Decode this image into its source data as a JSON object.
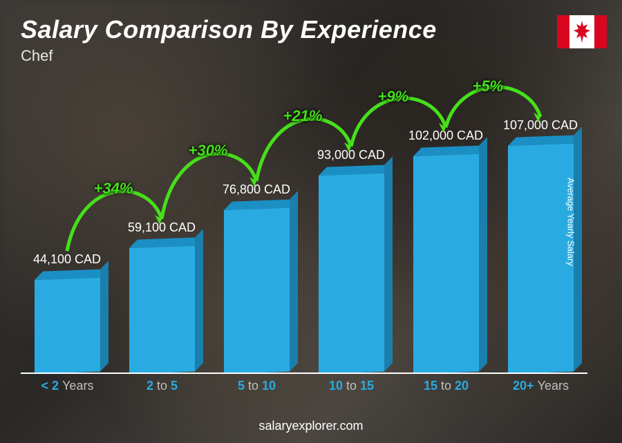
{
  "title": "Salary Comparison By Experience",
  "subtitle": "Chef",
  "y_axis_label": "Average Yearly Salary",
  "footer": "salaryexplorer.com",
  "flag": {
    "country": "Canada",
    "band_color": "#d80621",
    "center_color": "#ffffff"
  },
  "chart": {
    "type": "bar",
    "currency": "CAD",
    "bar_fill": "#29abe2",
    "bar_top": "#1b8fc4",
    "bar_side": "#1b7fae",
    "baseline_color": "#ffffff",
    "value_color": "#ffffff",
    "pct_color": "#46e01a",
    "arrow_stroke": "#46e01a",
    "label_accent": "#29abe2",
    "label_muted": "#c0c0c0",
    "max_value": 107000,
    "max_bar_height": 330,
    "bars": [
      {
        "label_pre": "< 2",
        "label_post": "Years",
        "value": 44100,
        "value_text": "44,100 CAD"
      },
      {
        "label_pre": "2",
        "label_mid": "to",
        "label_post": "5",
        "value": 59100,
        "value_text": "59,100 CAD",
        "pct": "+34%"
      },
      {
        "label_pre": "5",
        "label_mid": "to",
        "label_post": "10",
        "value": 76800,
        "value_text": "76,800 CAD",
        "pct": "+30%"
      },
      {
        "label_pre": "10",
        "label_mid": "to",
        "label_post": "15",
        "value": 93000,
        "value_text": "93,000 CAD",
        "pct": "+21%"
      },
      {
        "label_pre": "15",
        "label_mid": "to",
        "label_post": "20",
        "value": 102000,
        "value_text": "102,000 CAD",
        "pct": "+9%"
      },
      {
        "label_pre": "20+",
        "label_post": "Years",
        "value": 107000,
        "value_text": "107,000 CAD",
        "pct": "+5%"
      }
    ]
  }
}
